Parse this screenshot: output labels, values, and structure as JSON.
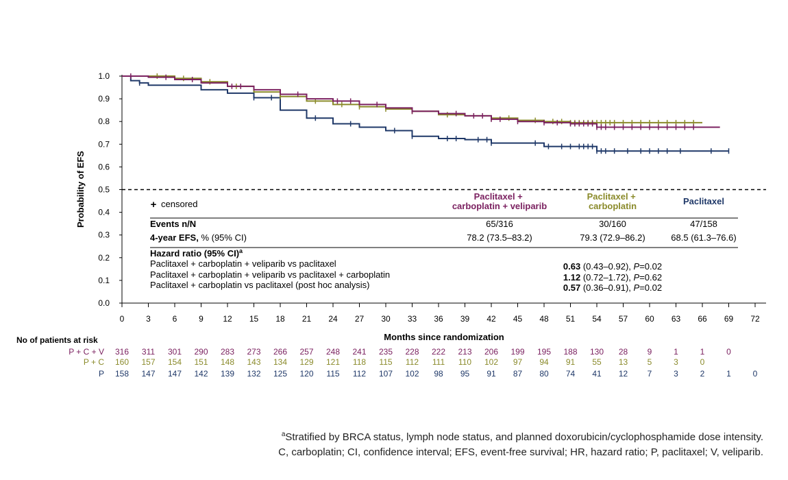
{
  "chart_data": {
    "type": "line",
    "subtype": "kaplan-meier",
    "xlabel": "Months since randomization",
    "ylabel": "Probability of EFS",
    "xlim": [
      0,
      72
    ],
    "ylim": [
      0,
      1
    ],
    "x_ticks": [
      0,
      3,
      6,
      9,
      12,
      15,
      18,
      21,
      24,
      27,
      30,
      33,
      36,
      39,
      42,
      45,
      48,
      51,
      54,
      57,
      60,
      63,
      66,
      69,
      72
    ],
    "y_ticks": [
      "0.0",
      "0.1",
      "0.2",
      "0.3",
      "0.4",
      "0.5",
      "0.6",
      "0.7",
      "0.8",
      "0.9",
      "1.0"
    ],
    "reference_line": {
      "y": 0.5,
      "style": "dashed"
    },
    "censored_label": "censored",
    "censored_symbol": "+",
    "series": [
      {
        "name": "Paclitaxel + carboplatin + veliparib",
        "header": [
          "Paclitaxel +",
          "carboplatin + veliparib"
        ],
        "color": "#7b2160",
        "x": [
          0,
          3,
          6,
          9,
          12,
          15,
          18,
          21,
          24,
          27,
          30,
          33,
          36,
          39,
          42,
          45,
          48,
          51,
          54,
          57,
          60,
          63,
          66,
          68
        ],
        "y": [
          1.0,
          0.995,
          0.985,
          0.97,
          0.955,
          0.94,
          0.92,
          0.9,
          0.89,
          0.875,
          0.86,
          0.845,
          0.835,
          0.825,
          0.81,
          0.8,
          0.795,
          0.79,
          0.775,
          0.775,
          0.775,
          0.775,
          0.775,
          0.775
        ],
        "censor_x": [
          1,
          5,
          8,
          12.5,
          13.5,
          20,
          24.5,
          26,
          29,
          33,
          38,
          40,
          41,
          42,
          43,
          45,
          48,
          49.5,
          51,
          51.5,
          52,
          52.5,
          53,
          53.5,
          54,
          54.5,
          55,
          56,
          57,
          58,
          59,
          60,
          61,
          62,
          63,
          64,
          65
        ]
      },
      {
        "name": "Paclitaxel + carboplatin",
        "header": [
          "Paclitaxel +",
          "carboplatin"
        ],
        "color": "#8a8a2a",
        "x": [
          0,
          3,
          6,
          9,
          12,
          15,
          18,
          21,
          24,
          27,
          30,
          33,
          36,
          39,
          42,
          45,
          48,
          51,
          54,
          57,
          60,
          63,
          66
        ],
        "y": [
          1.0,
          1.0,
          0.99,
          0.975,
          0.955,
          0.93,
          0.91,
          0.89,
          0.875,
          0.865,
          0.855,
          0.845,
          0.83,
          0.825,
          0.815,
          0.805,
          0.8,
          0.795,
          0.795,
          0.795,
          0.795,
          0.795,
          0.795
        ],
        "censor_x": [
          4,
          7,
          10,
          13,
          18,
          22,
          25,
          27,
          30,
          33,
          37,
          42,
          44,
          47,
          49,
          50,
          51,
          51.5,
          52,
          52.5,
          53,
          53.5,
          54,
          54.5,
          55,
          55.5,
          56,
          57,
          58,
          59,
          60,
          61,
          62,
          63,
          64,
          65
        ]
      },
      {
        "name": "Paclitaxel",
        "header": [
          "Paclitaxel"
        ],
        "color": "#1f3868",
        "x": [
          0,
          1,
          2,
          3,
          6,
          9,
          12,
          15,
          18,
          21,
          24,
          27,
          30,
          33,
          36,
          39,
          42,
          45,
          48,
          51,
          54,
          57,
          60,
          63,
          66,
          69
        ],
        "y": [
          1.0,
          0.98,
          0.97,
          0.96,
          0.96,
          0.94,
          0.925,
          0.905,
          0.85,
          0.815,
          0.79,
          0.775,
          0.76,
          0.735,
          0.725,
          0.72,
          0.705,
          0.705,
          0.69,
          0.69,
          0.67,
          0.67,
          0.67,
          0.67,
          0.67,
          0.67
        ],
        "censor_x": [
          2,
          15,
          17,
          22,
          26,
          31,
          33,
          37,
          38,
          40.5,
          41.5,
          42,
          47,
          48.5,
          50,
          51,
          52,
          52.5,
          53,
          53.5,
          54,
          54.5,
          55,
          56,
          57.5,
          59,
          60,
          61,
          62,
          63.5,
          67,
          69
        ]
      }
    ],
    "stats_table": {
      "events_label": "Events n/N",
      "efs_label_bold": "4-year EFS,",
      "efs_label_rest": " % (95% CI)",
      "events": [
        "65/316",
        "30/160",
        "47/158"
      ],
      "efs": [
        "78.2 (73.5–83.2)",
        "79.3 (72.9–86.2)",
        "68.5 (61.3–76.6)"
      ],
      "hr_title": "Hazard ratio (95% CI)",
      "hr_sup": "a",
      "hr_rows": [
        {
          "label": "Paclitaxel + carboplatin + veliparib vs paclitaxel",
          "hr": "0.63",
          "ci": " (0.43–0.92), ",
          "p_prefix": "P",
          "p": "=0.02"
        },
        {
          "label": "Paclitaxel + carboplatin + veliparib vs paclitaxel + carboplatin",
          "hr": "1.12",
          "ci": " (0.72–1.72), ",
          "p_prefix": "P",
          "p": "=0.62"
        },
        {
          "label": "Paclitaxel + carboplatin vs paclitaxel (post hoc analysis)",
          "hr": "0.57",
          "ci": " (0.36–0.91), ",
          "p_prefix": "P",
          "p": "=0.02"
        }
      ]
    },
    "at_risk": {
      "title": "No of patients at risk",
      "rows": [
        {
          "label": "P + C + V",
          "color": "#7b2160",
          "values": [
            316,
            311,
            301,
            290,
            283,
            273,
            266,
            257,
            248,
            241,
            235,
            228,
            222,
            213,
            206,
            199,
            195,
            188,
            130,
            28,
            9,
            1,
            1,
            0
          ]
        },
        {
          "label": "P + C",
          "color": "#8a8a2a",
          "values": [
            160,
            157,
            154,
            151,
            148,
            143,
            134,
            129,
            121,
            118,
            115,
            112,
            111,
            110,
            102,
            97,
            94,
            91,
            55,
            13,
            5,
            3,
            0
          ]
        },
        {
          "label": "P",
          "color": "#1f3868",
          "values": [
            158,
            147,
            147,
            142,
            139,
            132,
            125,
            120,
            115,
            112,
            107,
            102,
            98,
            95,
            91,
            87,
            80,
            74,
            41,
            12,
            7,
            3,
            2,
            1,
            0
          ]
        }
      ]
    }
  },
  "footnotes": {
    "line1_sup": "a",
    "line1": "Stratified by BRCA status, lymph node status, and planned doxorubicin/cyclophosphamide dose intensity.",
    "line2": "C, carboplatin; CI, confidence interval; EFS, event-free survival; HR, hazard ratio; P, paclitaxel; V, veliparib."
  }
}
